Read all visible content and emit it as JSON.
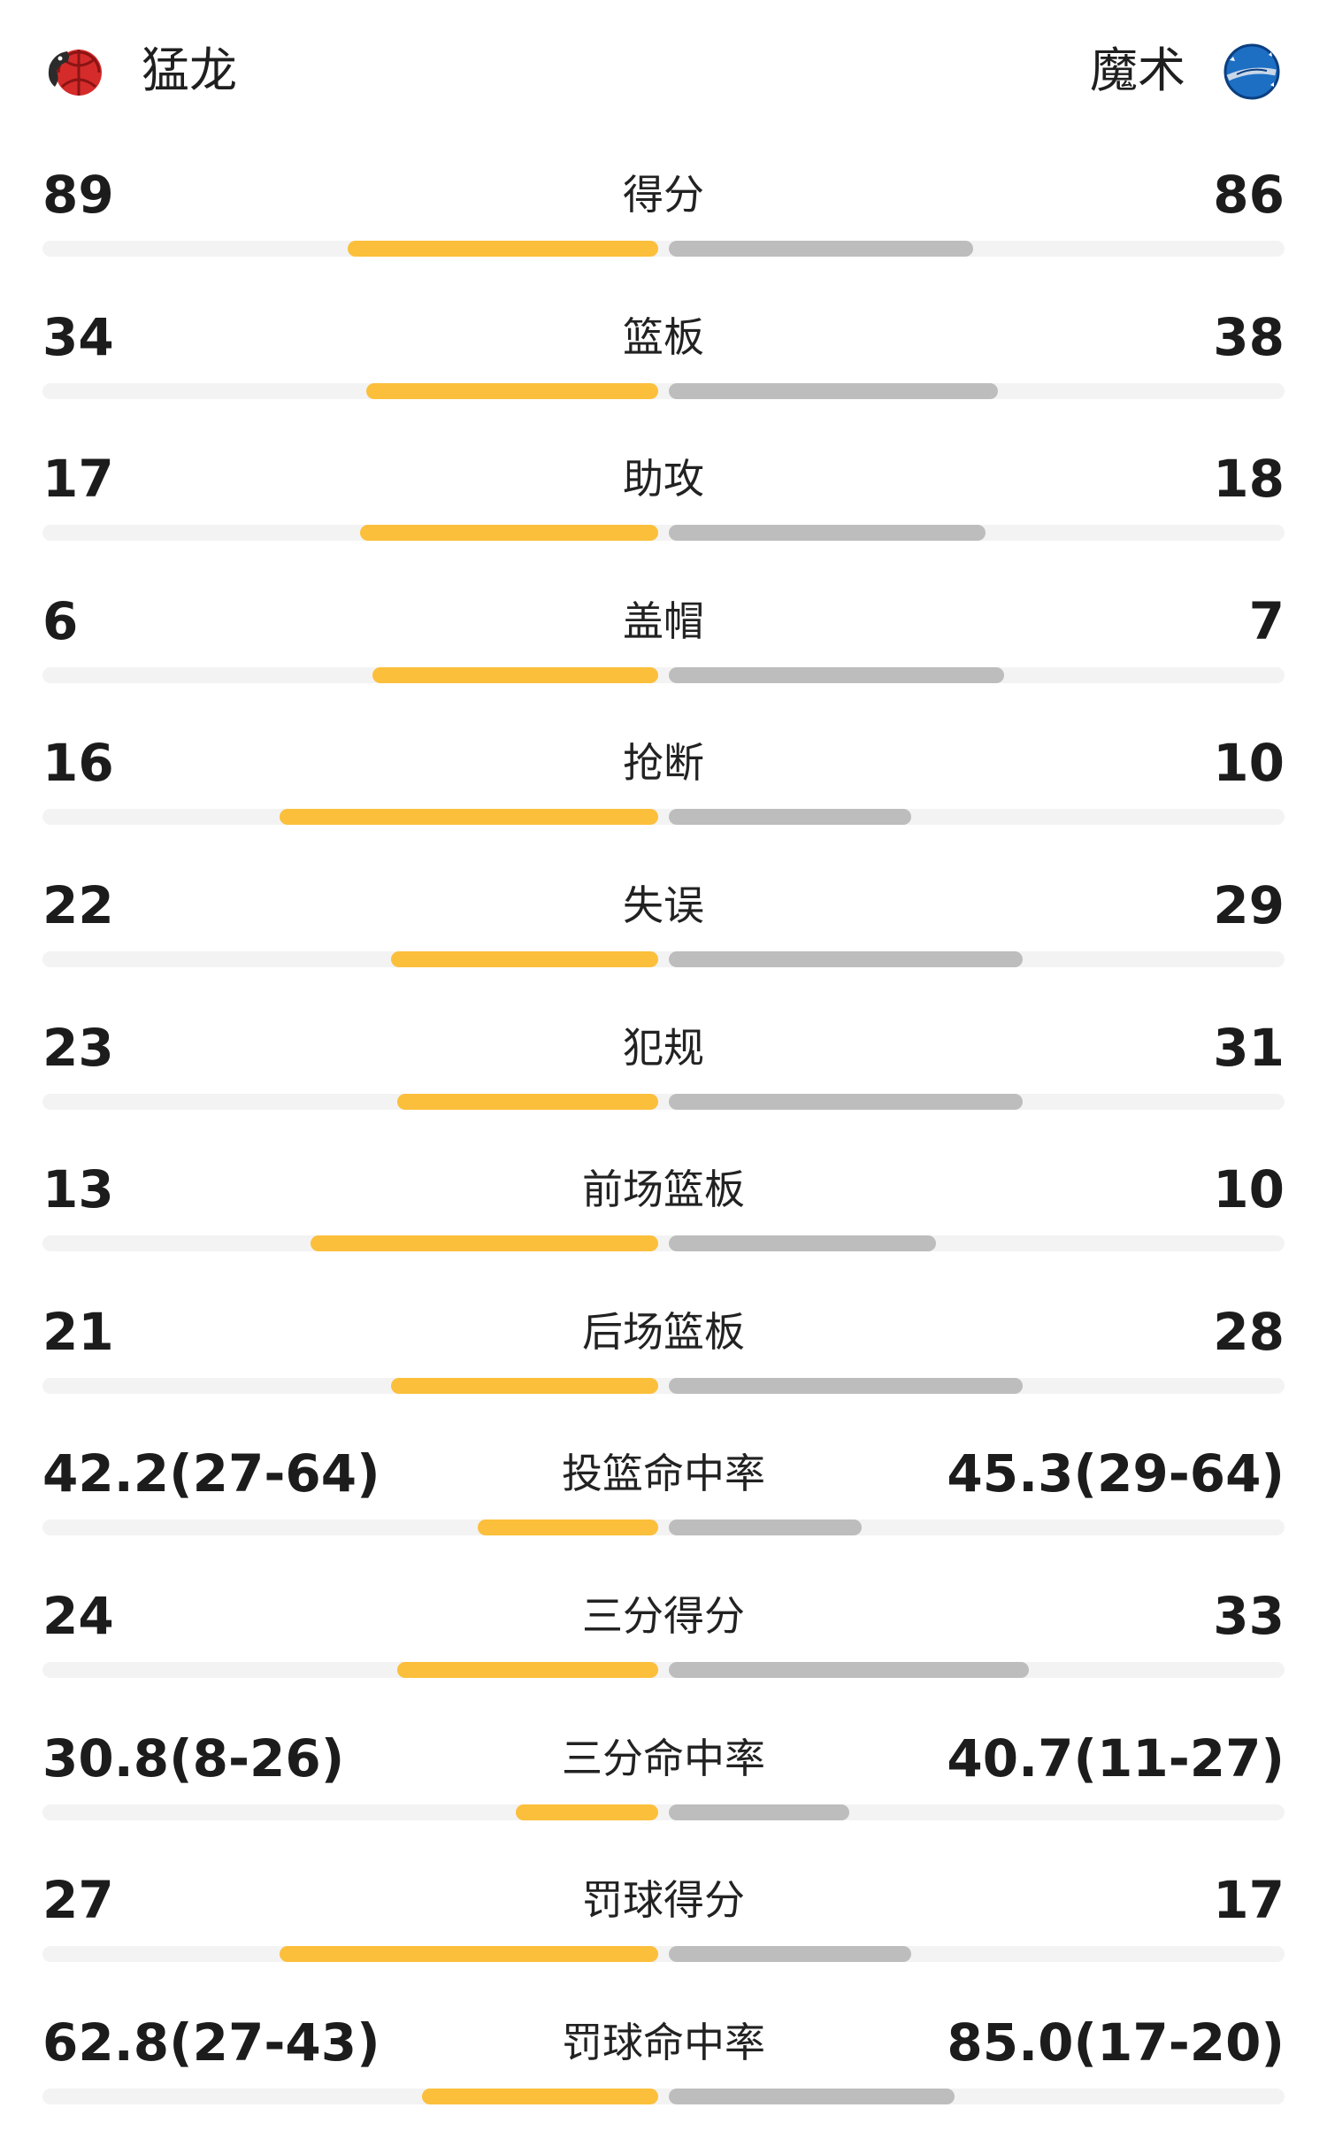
{
  "teams": {
    "home": {
      "name": "猛龙",
      "logo_icon": "raptors-basketball-logo-icon"
    },
    "away": {
      "name": "魔术",
      "logo_icon": "magic-logo-icon"
    }
  },
  "colors": {
    "home_bar": "#fbbf3b",
    "away_bar": "#bdbdbd",
    "track": "#f3f3f3"
  },
  "stats": [
    {
      "label": "得分",
      "home": "89",
      "away": "86",
      "home_bar": 0.5,
      "away_bar": 0.49
    },
    {
      "label": "篮板",
      "home": "34",
      "away": "38",
      "home_bar": 0.47,
      "away_bar": 0.53
    },
    {
      "label": "助攻",
      "home": "17",
      "away": "18",
      "home_bar": 0.48,
      "away_bar": 0.51
    },
    {
      "label": "盖帽",
      "home": "6",
      "away": "7",
      "home_bar": 0.46,
      "away_bar": 0.54
    },
    {
      "label": "抢断",
      "home": "16",
      "away": "10",
      "home_bar": 0.61,
      "away_bar": 0.39
    },
    {
      "label": "失误",
      "home": "22",
      "away": "29",
      "home_bar": 0.43,
      "away_bar": 0.57
    },
    {
      "label": "犯规",
      "home": "23",
      "away": "31",
      "home_bar": 0.42,
      "away_bar": 0.57
    },
    {
      "label": "前场篮板",
      "home": "13",
      "away": "10",
      "home_bar": 0.56,
      "away_bar": 0.43
    },
    {
      "label": "后场篮板",
      "home": "21",
      "away": "28",
      "home_bar": 0.43,
      "away_bar": 0.57
    },
    {
      "label": "投篮命中率",
      "home": "42.2(27-64)",
      "away": "45.3(29-64)",
      "home_bar": 0.29,
      "away_bar": 0.31
    },
    {
      "label": "三分得分",
      "home": "24",
      "away": "33",
      "home_bar": 0.42,
      "away_bar": 0.58
    },
    {
      "label": "三分命中率",
      "home": "30.8(8-26)",
      "away": "40.7(11-27)",
      "home_bar": 0.23,
      "away_bar": 0.29
    },
    {
      "label": "罚球得分",
      "home": "27",
      "away": "17",
      "home_bar": 0.61,
      "away_bar": 0.39
    },
    {
      "label": "罚球命中率",
      "home": "62.8(27-43)",
      "away": "85.0(17-20)",
      "home_bar": 0.38,
      "away_bar": 0.46
    }
  ]
}
